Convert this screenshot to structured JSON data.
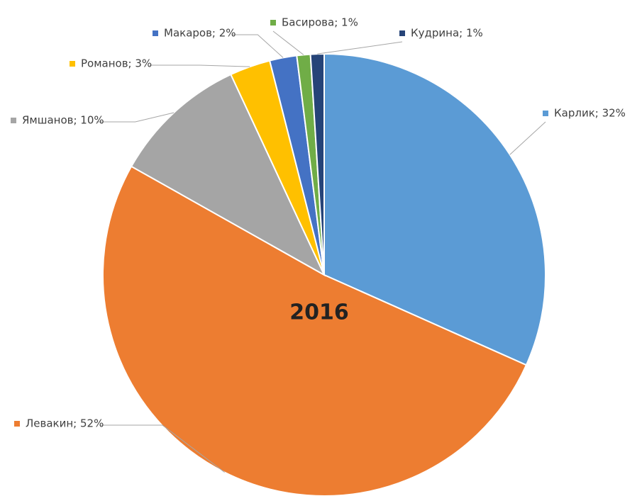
{
  "chart_data": {
    "type": "pie",
    "title": "2016",
    "values": [
      32,
      52,
      10,
      3,
      2,
      1,
      1
    ],
    "value_labels": [
      "Карлик; 32%",
      "Левакин; 52%",
      "Ямшанов; 10%",
      "Романов; 3%",
      "Макаров; 2%",
      "Басирова; 1%",
      "Кудрина; 1%"
    ],
    "colors": [
      "#5b9bd5",
      "#ed7d31",
      "#a5a5a5",
      "#ffc000",
      "#4472c4",
      "#70ad47",
      "#264478"
    ]
  }
}
